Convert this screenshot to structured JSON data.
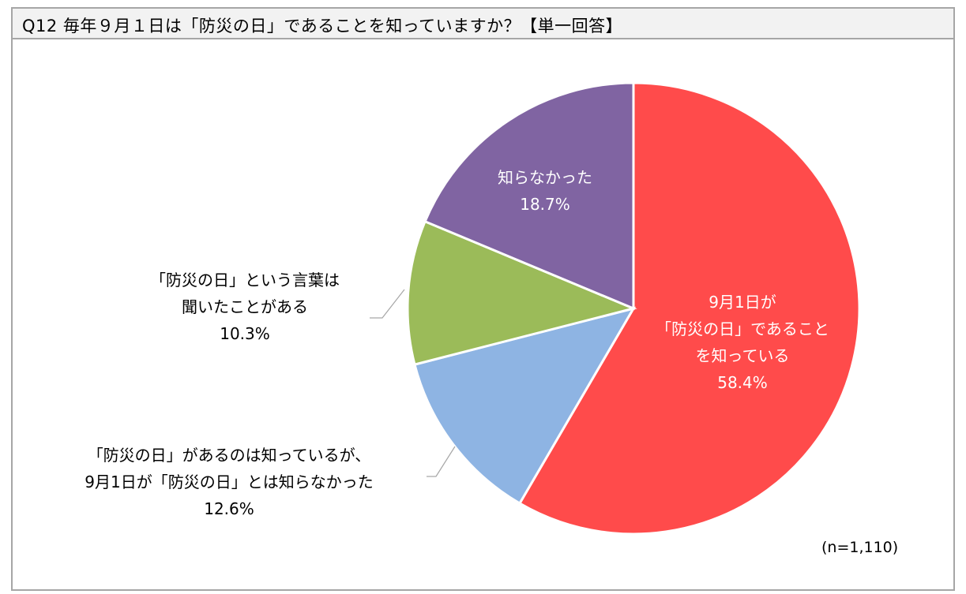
{
  "chart_data": {
    "type": "pie",
    "title": "Q12 毎年９月１日は「防災の日」であることを知っていますか？【単一回答】",
    "note": "(n=1,110)",
    "slices": [
      {
        "label_lines": [
          "9月1日が",
          "「防災の日」であること",
          "を知っている"
        ],
        "value": 58.4,
        "value_label": "58.4%",
        "color": "#FF4B4B"
      },
      {
        "label_lines": [
          "「防災の日」があるのは知っているが、",
          "9月1日が「防災の日」とは知らなかった"
        ],
        "value": 12.6,
        "value_label": "12.6%",
        "color": "#8EB4E3"
      },
      {
        "label_lines": [
          "「防災の日」という言葉は",
          "聞いたことがある"
        ],
        "value": 10.3,
        "value_label": "10.3%",
        "color": "#9BBB59"
      },
      {
        "label_lines": [
          "知らなかった"
        ],
        "value": 18.7,
        "value_label": "18.7%",
        "color": "#8064A2"
      }
    ],
    "start": "top",
    "direction": "clockwise"
  }
}
